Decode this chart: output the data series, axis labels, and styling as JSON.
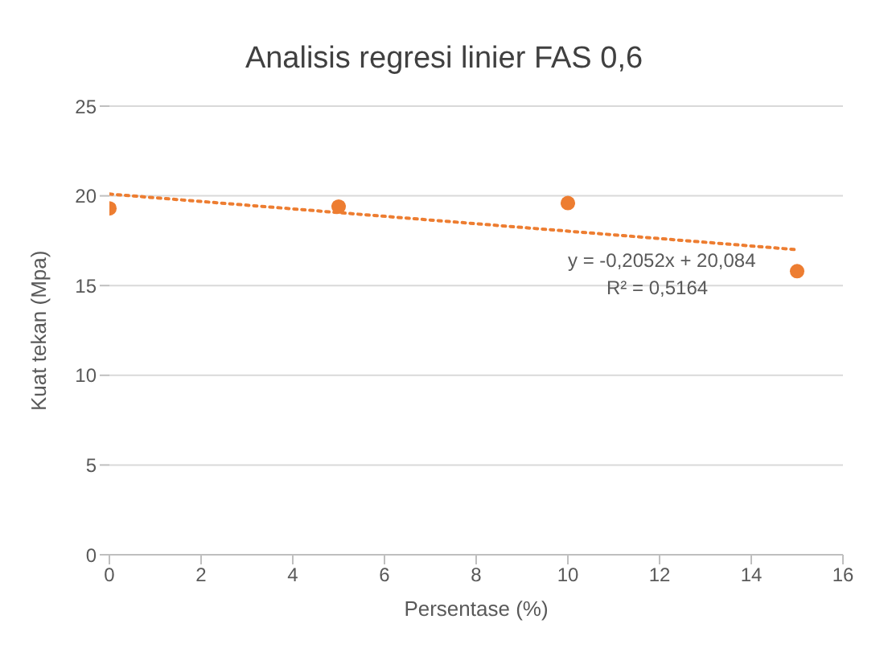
{
  "chart_data": {
    "type": "scatter",
    "title": "Analisis regresi linier FAS 0,6",
    "xlabel": "Persentase (%)",
    "ylabel": "Kuat tekan (Mpa)",
    "series": [
      {
        "color": "#ed7d31",
        "x": [
          0,
          5,
          10,
          15
        ],
        "values": [
          19.3,
          19.4,
          19.6,
          15.8
        ],
        "marker": "circle"
      },
      {
        "type": "line",
        "color": "#ed7d31",
        "x": [
          0,
          15
        ],
        "values": [
          20.1,
          17.0
        ],
        "line_style": "dotted",
        "marker": "none"
      }
    ],
    "annotations": [
      "y = -0,2052x + 20,084",
      "R² = 0,5164"
    ],
    "xlim": [
      0,
      16
    ],
    "xticks": [
      0,
      2,
      4,
      6,
      8,
      10,
      12,
      14,
      16
    ],
    "ylim": [
      0,
      25
    ],
    "yticks": [
      0,
      5,
      10,
      15,
      20,
      25
    ],
    "grid": "y",
    "legend": false
  }
}
